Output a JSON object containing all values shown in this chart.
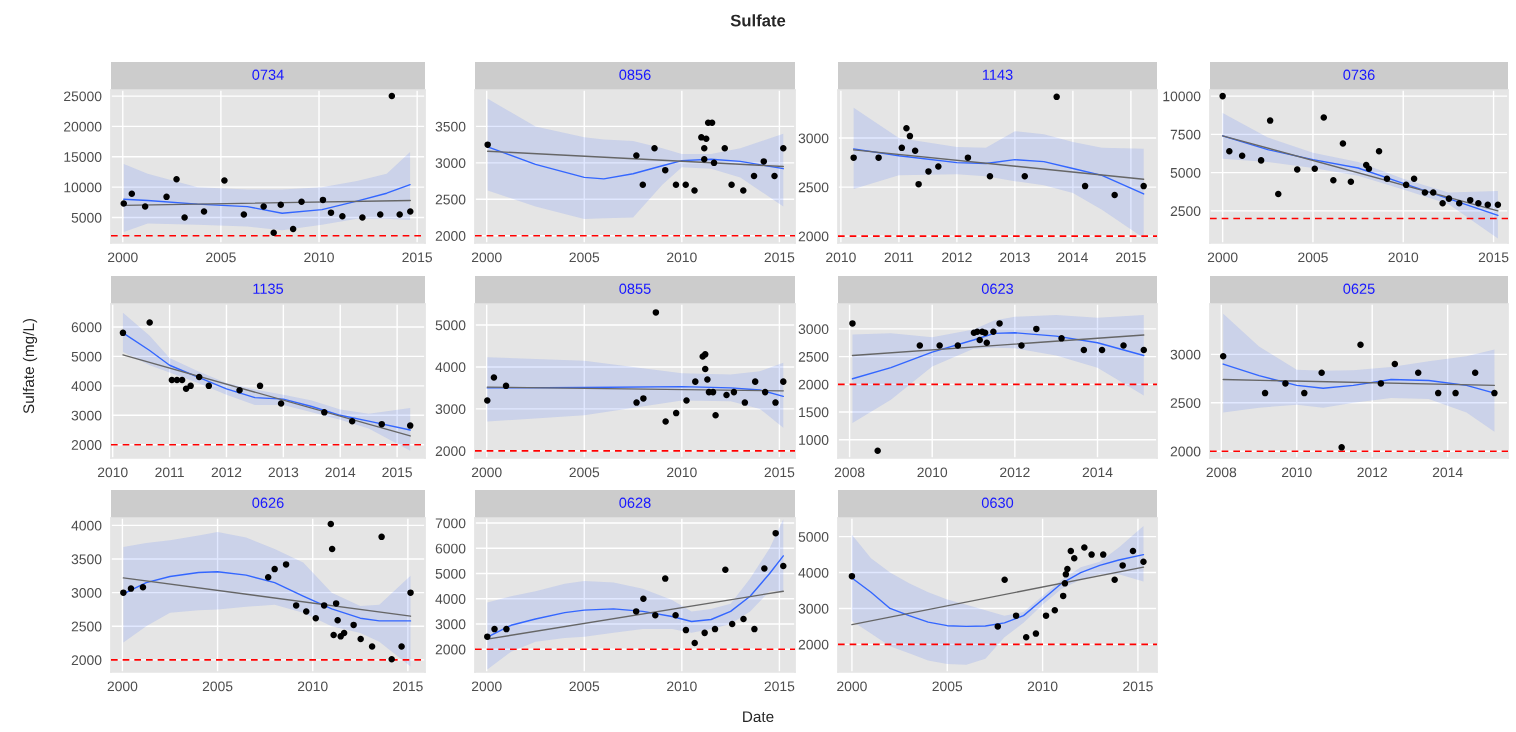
{
  "chart_data": [
    {
      "type": "scatter",
      "title": "0734",
      "xlim": [
        1999.4,
        2015.4
      ],
      "ylim": [
        800,
        26000
      ],
      "xticks": [
        2000,
        2005,
        2010,
        2015
      ],
      "yticks": [
        5000,
        10000,
        15000,
        20000,
        25000
      ],
      "grid": true,
      "ref_lines": [
        {
          "axis": "y",
          "value": 2000,
          "color": "#ff0000",
          "line_style": "dashed"
        }
      ],
      "series": [
        {
          "type": "scatter",
          "marker": "circle",
          "color": "#000000",
          "x": [
            2000.05,
            2000.46,
            2001.14,
            2002.23,
            2002.74,
            2003.15,
            2004.14,
            2005.18,
            2006.17,
            2007.18,
            2007.69,
            2008.05,
            2008.68,
            2009.11,
            2010.2,
            2010.61,
            2011.19,
            2012.21,
            2013.12,
            2013.71,
            2014.11,
            2014.65
          ],
          "values": [
            7300,
            8900,
            6800,
            8400,
            11300,
            5000,
            6000,
            11100,
            5500,
            6800,
            2500,
            7100,
            3100,
            7600,
            7900,
            5800,
            5200,
            5000,
            5500,
            25000,
            5500,
            6000
          ]
        },
        {
          "type": "line",
          "color": "#3366ff",
          "x": [
            2000.05,
            2001.27,
            2003.81,
            2006.35,
            2008.12,
            2010.15,
            2011.93,
            2013.45,
            2014.64
          ],
          "values": [
            8000,
            7800,
            7200,
            6800,
            5700,
            6300,
            7700,
            9000,
            10400
          ],
          "lower": [
            2600,
            4000,
            3800,
            3500,
            2900,
            3800,
            4800,
            4800,
            4600
          ],
          "upper": [
            13800,
            12200,
            10000,
            9600,
            9600,
            10000,
            11000,
            12200,
            15800
          ]
        },
        {
          "type": "line",
          "color": "#666666",
          "x": [
            2000.05,
            2014.65
          ],
          "values": [
            7000,
            7800
          ]
        }
      ]
    },
    {
      "type": "scatter",
      "title": "0856",
      "xlim": [
        1999.4,
        2015.8
      ],
      "ylim": [
        1900,
        4000
      ],
      "xticks": [
        2000,
        2005,
        2010,
        2015
      ],
      "yticks": [
        2000,
        2500,
        3000,
        3500
      ],
      "grid": true,
      "ref_lines": [
        {
          "axis": "y",
          "value": 2000,
          "color": "#ff0000",
          "line_style": "dashed"
        }
      ],
      "series": [
        {
          "type": "scatter",
          "marker": "circle",
          "color": "#000000",
          "x": [
            2000.05,
            2007.67,
            2008.0,
            2008.6,
            2009.15,
            2009.7,
            2010.2,
            2010.65,
            2011.0,
            2011.15,
            2011.25,
            2011.15,
            2011.35,
            2011.55,
            2011.65,
            2012.2,
            2012.55,
            2013.15,
            2013.7,
            2014.2,
            2014.75,
            2015.2
          ],
          "values": [
            3250,
            3100,
            2700,
            3200,
            2900,
            2700,
            2700,
            2620,
            3350,
            3200,
            3330,
            3050,
            3550,
            3550,
            3000,
            3200,
            2700,
            2620,
            2820,
            3020,
            2820,
            3200
          ]
        },
        {
          "type": "line",
          "color": "#3366ff",
          "x": [
            2000.05,
            2002.5,
            2005,
            2006,
            2007.5,
            2009,
            2010,
            2011.5,
            2013,
            2015.2
          ],
          "values": [
            3220,
            2980,
            2800,
            2780,
            2850,
            2960,
            3030,
            3050,
            3020,
            2920
          ],
          "lower": [
            2620,
            2400,
            2230,
            2240,
            2250,
            2700,
            2940,
            2920,
            2800,
            2400
          ],
          "upper": [
            3880,
            3500,
            3350,
            3320,
            3300,
            3200,
            3120,
            3120,
            3200,
            3400
          ]
        },
        {
          "type": "line",
          "color": "#666666",
          "x": [
            2000.05,
            2015.2
          ],
          "values": [
            3160,
            2950
          ]
        }
      ]
    },
    {
      "type": "scatter",
      "title": "1143",
      "xlim": [
        2009.95,
        2015.45
      ],
      "ylim": [
        1930,
        3490
      ],
      "xticks": [
        2010,
        2011,
        2012,
        2013,
        2014,
        2015
      ],
      "yticks": [
        2000,
        2500,
        3000
      ],
      "grid": true,
      "ref_lines": [
        {
          "axis": "y",
          "value": 2000,
          "color": "#ff0000",
          "line_style": "dashed"
        }
      ],
      "series": [
        {
          "type": "scatter",
          "marker": "circle",
          "color": "#000000",
          "x": [
            2010.22,
            2010.65,
            2011.05,
            2011.13,
            2011.19,
            2011.28,
            2011.34,
            2011.51,
            2011.68,
            2012.19,
            2012.57,
            2013.17,
            2013.72,
            2014.21,
            2014.72,
            2015.22
          ],
          "values": [
            2800,
            2800,
            2900,
            3100,
            3020,
            2870,
            2530,
            2660,
            2710,
            2800,
            2610,
            2610,
            3420,
            2510,
            2420,
            2510
          ]
        },
        {
          "type": "line",
          "color": "#3366ff",
          "x": [
            2010.22,
            2011,
            2012,
            2012.5,
            2013,
            2013.5,
            2014,
            2014.5,
            2015.22
          ],
          "values": [
            2890,
            2820,
            2750,
            2740,
            2780,
            2760,
            2690,
            2620,
            2430
          ],
          "lower": [
            2480,
            2620,
            2630,
            2610,
            2560,
            2520,
            2440,
            2270,
            1980
          ],
          "upper": [
            3310,
            3000,
            2910,
            2900,
            3070,
            3040,
            2960,
            2900,
            2890
          ]
        },
        {
          "type": "line",
          "color": "#666666",
          "x": [
            2010.22,
            2015.22
          ],
          "values": [
            2880,
            2580
          ]
        }
      ]
    },
    {
      "type": "scatter",
      "title": "0736",
      "xlim": [
        1999.3,
        2015.8
      ],
      "ylim": [
        400,
        10400
      ],
      "xticks": [
        2000,
        2005,
        2010,
        2015
      ],
      "yticks": [
        2500,
        5000,
        7500,
        10000
      ],
      "grid": true,
      "ref_lines": [
        {
          "axis": "y",
          "value": 2000,
          "color": "#ff0000",
          "line_style": "dashed"
        }
      ],
      "series": [
        {
          "type": "scatter",
          "marker": "circle",
          "color": "#000000",
          "x": [
            2000.0,
            2000.37,
            2001.08,
            2002.13,
            2002.63,
            2003.08,
            2004.13,
            2005.1,
            2005.6,
            2006.13,
            2006.66,
            2007.1,
            2007.95,
            2008.1,
            2008.66,
            2009.1,
            2010.16,
            2010.6,
            2011.2,
            2011.66,
            2012.18,
            2012.53,
            2013.1,
            2013.71,
            2014.16,
            2014.68,
            2015.24
          ],
          "values": [
            10000,
            6400,
            6100,
            5800,
            8400,
            3600,
            5200,
            5250,
            8600,
            4500,
            6900,
            4400,
            5500,
            5250,
            6400,
            4600,
            4200,
            4600,
            3700,
            3700,
            3000,
            3300,
            3000,
            3200,
            3000,
            2900,
            2900
          ]
        },
        {
          "type": "line",
          "color": "#3366ff",
          "x": [
            2000.0,
            2002.5,
            2005,
            2007.5,
            2010,
            2012.5,
            2015.24
          ],
          "values": [
            7400,
            6500,
            5850,
            5300,
            4300,
            3300,
            2200
          ],
          "lower": [
            5900,
            5700,
            5300,
            4800,
            3900,
            2950,
            700
          ],
          "upper": [
            8900,
            7300,
            6300,
            5700,
            4600,
            3700,
            3800
          ]
        },
        {
          "type": "line",
          "color": "#666666",
          "x": [
            2000.0,
            2015.24
          ],
          "values": [
            7400,
            2500
          ]
        }
      ]
    },
    {
      "type": "scatter",
      "title": "1135",
      "xlim": [
        2009.97,
        2015.49
      ],
      "ylim": [
        1550,
        6780
      ],
      "xticks": [
        2010,
        2011,
        2012,
        2013,
        2014,
        2015
      ],
      "yticks": [
        2000,
        3000,
        4000,
        5000,
        6000
      ],
      "grid": true,
      "ref_lines": [
        {
          "axis": "y",
          "value": 2000,
          "color": "#ff0000",
          "line_style": "dashed"
        }
      ],
      "series": [
        {
          "type": "scatter",
          "marker": "circle",
          "color": "#000000",
          "x": [
            2010.18,
            2010.65,
            2011.04,
            2011.13,
            2011.22,
            2011.29,
            2011.37,
            2011.52,
            2011.69,
            2012.23,
            2012.59,
            2012.96,
            2013.72,
            2014.21,
            2014.73,
            2015.23
          ],
          "values": [
            5800,
            6150,
            4200,
            4200,
            4200,
            3900,
            4000,
            4300,
            4000,
            3850,
            4000,
            3400,
            3100,
            2800,
            2700,
            2650
          ]
        },
        {
          "type": "line",
          "color": "#3366ff",
          "x": [
            2010.18,
            2010.65,
            2011,
            2011.5,
            2012,
            2012.5,
            2013,
            2013.5,
            2014,
            2014.5,
            2015.23
          ],
          "values": [
            5800,
            5200,
            4700,
            4300,
            3900,
            3600,
            3550,
            3300,
            3000,
            2800,
            2500
          ],
          "lower": [
            5150,
            4700,
            4450,
            4100,
            3700,
            3350,
            3350,
            3100,
            2850,
            2550,
            1800
          ],
          "upper": [
            6480,
            5700,
            4950,
            4500,
            4100,
            3880,
            3700,
            3500,
            3200,
            3050,
            3250
          ]
        },
        {
          "type": "line",
          "color": "#666666",
          "x": [
            2010.18,
            2015.23
          ],
          "values": [
            5050,
            2300
          ]
        }
      ]
    },
    {
      "type": "scatter",
      "title": "0855",
      "xlim": [
        1999.4,
        2015.8
      ],
      "ylim": [
        1830,
        5500
      ],
      "xticks": [
        2000,
        2005,
        2010,
        2015
      ],
      "yticks": [
        2000,
        3000,
        4000,
        5000
      ],
      "grid": true,
      "ref_lines": [
        {
          "axis": "y",
          "value": 2000,
          "color": "#ff0000",
          "line_style": "dashed"
        }
      ],
      "series": [
        {
          "type": "scatter",
          "marker": "circle",
          "color": "#000000",
          "x": [
            2000.03,
            2000.37,
            2000.99,
            2007.68,
            2008.03,
            2008.67,
            2009.17,
            2009.71,
            2010.24,
            2010.69,
            2011.07,
            2011.2,
            2011.2,
            2011.31,
            2011.39,
            2011.6,
            2011.73,
            2012.29,
            2012.67,
            2013.23,
            2013.76,
            2014.27,
            2014.8,
            2015.2
          ],
          "values": [
            3200,
            3750,
            3550,
            3150,
            3250,
            5300,
            2700,
            2900,
            3200,
            3650,
            4250,
            4300,
            3950,
            3700,
            3400,
            3400,
            2850,
            3330,
            3400,
            3150,
            3650,
            3400,
            3150,
            3650
          ]
        },
        {
          "type": "line",
          "color": "#3366ff",
          "x": [
            2000.03,
            2005,
            2010,
            2012.5,
            2014,
            2015.2
          ],
          "values": [
            3500,
            3510,
            3530,
            3500,
            3450,
            3300
          ],
          "lower": [
            2700,
            2850,
            3200,
            3180,
            3000,
            2550
          ],
          "upper": [
            4230,
            4150,
            3850,
            3820,
            3900,
            4100
          ]
        },
        {
          "type": "line",
          "color": "#666666",
          "x": [
            2000.03,
            2015.2
          ],
          "values": [
            3520,
            3430
          ]
        }
      ]
    },
    {
      "type": "scatter",
      "title": "0623",
      "xlim": [
        2007.72,
        2015.44
      ],
      "ylim": [
        670,
        3450
      ],
      "xticks": [
        2008,
        2010,
        2012,
        2014
      ],
      "yticks": [
        1000,
        1500,
        2000,
        2500,
        3000
      ],
      "grid": true,
      "ref_lines": [
        {
          "axis": "y",
          "value": 2000,
          "color": "#ff0000",
          "line_style": "dashed"
        }
      ],
      "series": [
        {
          "type": "scatter",
          "marker": "circle",
          "color": "#000000",
          "x": [
            2008.07,
            2008.68,
            2009.7,
            2010.18,
            2010.62,
            2011.01,
            2011.09,
            2011.15,
            2011.21,
            2011.28,
            2011.32,
            2011.48,
            2011.63,
            2012.16,
            2012.52,
            2013.13,
            2013.67,
            2014.11,
            2014.63,
            2015.12
          ],
          "values": [
            3100,
            800,
            2700,
            2700,
            2700,
            2930,
            2950,
            2800,
            2950,
            2930,
            2750,
            2950,
            3100,
            2700,
            3000,
            2830,
            2620,
            2620,
            2700,
            2620
          ]
        },
        {
          "type": "line",
          "color": "#3366ff",
          "x": [
            2008.07,
            2009,
            2010,
            2011,
            2011.5,
            2012,
            2013,
            2014,
            2015.12
          ],
          "values": [
            2100,
            2300,
            2580,
            2800,
            2920,
            2930,
            2870,
            2750,
            2520
          ],
          "lower": [
            1300,
            1720,
            2320,
            2640,
            2660,
            2650,
            2520,
            2300,
            1800
          ],
          "upper": [
            2900,
            2920,
            2850,
            2990,
            3150,
            3220,
            3250,
            3200,
            3250
          ]
        },
        {
          "type": "line",
          "color": "#666666",
          "x": [
            2008.07,
            2015.12
          ],
          "values": [
            2520,
            2890
          ]
        }
      ]
    },
    {
      "type": "scatter",
      "title": "0625",
      "xlim": [
        2007.7,
        2015.6
      ],
      "ylim": [
        1930,
        3520
      ],
      "xticks": [
        2008,
        2010,
        2012,
        2014
      ],
      "yticks": [
        2000,
        2500,
        3000
      ],
      "grid": true,
      "ref_lines": [
        {
          "axis": "y",
          "value": 2000,
          "color": "#ff0000",
          "line_style": "dashed"
        }
      ],
      "series": [
        {
          "type": "scatter",
          "marker": "circle",
          "color": "#000000",
          "x": [
            2008.05,
            2009.16,
            2009.7,
            2010.2,
            2010.66,
            2011.19,
            2011.69,
            2012.23,
            2012.6,
            2013.22,
            2013.75,
            2014.21,
            2014.73,
            2015.24
          ],
          "values": [
            2980,
            2600,
            2700,
            2600,
            2810,
            2040,
            3100,
            2700,
            2900,
            2810,
            2600,
            2600,
            2810,
            2600
          ]
        },
        {
          "type": "line",
          "color": "#3366ff",
          "x": [
            2008.05,
            2009,
            2010,
            2010.7,
            2011.5,
            2012.5,
            2013.5,
            2014.5,
            2015.24
          ],
          "values": [
            2900,
            2780,
            2680,
            2650,
            2680,
            2740,
            2730,
            2680,
            2600
          ],
          "lower": [
            2400,
            2450,
            2480,
            2450,
            2500,
            2550,
            2540,
            2400,
            2200
          ],
          "upper": [
            3420,
            3080,
            2840,
            2830,
            2835,
            2870,
            2930,
            2980,
            3050
          ]
        },
        {
          "type": "line",
          "color": "#666666",
          "x": [
            2008.05,
            2015.24
          ],
          "values": [
            2740,
            2680
          ]
        }
      ]
    },
    {
      "type": "scatter",
      "title": "0626",
      "xlim": [
        1999.4,
        2015.9
      ],
      "ylim": [
        1820,
        4110
      ],
      "xticks": [
        2000,
        2005,
        2010,
        2015
      ],
      "yticks": [
        2000,
        2500,
        3000,
        3500,
        4000
      ],
      "grid": true,
      "ref_lines": [
        {
          "axis": "y",
          "value": 2000,
          "color": "#ff0000",
          "line_style": "dashed"
        }
      ],
      "series": [
        {
          "type": "scatter",
          "marker": "circle",
          "color": "#000000",
          "x": [
            2000.05,
            2000.45,
            2001.08,
            2007.66,
            2008.0,
            2008.6,
            2009.13,
            2009.66,
            2010.16,
            2010.6,
            2010.95,
            2011.02,
            2011.1,
            2011.23,
            2011.31,
            2011.47,
            2011.65,
            2012.15,
            2012.52,
            2013.12,
            2013.62,
            2014.15,
            2014.67,
            2015.14
          ],
          "values": [
            3000,
            3060,
            3080,
            3230,
            3350,
            3420,
            2810,
            2720,
            2620,
            2810,
            4020,
            3650,
            2370,
            2840,
            2590,
            2350,
            2400,
            2520,
            2310,
            2200,
            3830,
            2010,
            2200,
            3000
          ]
        },
        {
          "type": "line",
          "color": "#3366ff",
          "x": [
            2000.05,
            2001.25,
            2002.5,
            2004,
            2005,
            2006.5,
            2008,
            2009.5,
            2011,
            2012.5,
            2013.5,
            2015.14
          ],
          "values": [
            2980,
            3150,
            3240,
            3300,
            3310,
            3260,
            3150,
            2950,
            2760,
            2620,
            2580,
            2580
          ],
          "lower": [
            2260,
            2500,
            2700,
            2740,
            2750,
            2790,
            2820,
            2700,
            2500,
            2400,
            2270,
            1900
          ],
          "upper": [
            3680,
            3740,
            3780,
            3850,
            3900,
            3820,
            3650,
            3450,
            3000,
            2800,
            2820,
            3250
          ]
        },
        {
          "type": "line",
          "color": "#666666",
          "x": [
            2000.05,
            2015.14
          ],
          "values": [
            3220,
            2650
          ]
        }
      ]
    },
    {
      "type": "scatter",
      "title": "0628",
      "xlim": [
        1999.4,
        2015.8
      ],
      "ylim": [
        1100,
        7200
      ],
      "xticks": [
        2000,
        2005,
        2010,
        2015
      ],
      "yticks": [
        2000,
        3000,
        4000,
        5000,
        6000,
        7000
      ],
      "grid": true,
      "ref_lines": [
        {
          "axis": "y",
          "value": 2000,
          "color": "#ff0000",
          "line_style": "dashed"
        }
      ],
      "series": [
        {
          "type": "scatter",
          "marker": "circle",
          "color": "#000000",
          "x": [
            2000.03,
            2000.4,
            2001.01,
            2007.66,
            2008.03,
            2008.64,
            2009.15,
            2009.68,
            2010.21,
            2010.66,
            2011.17,
            2011.7,
            2012.23,
            2012.58,
            2013.16,
            2013.72,
            2014.23,
            2014.81,
            2015.2
          ],
          "values": [
            2500,
            2800,
            2800,
            3500,
            4000,
            3350,
            4800,
            3350,
            2760,
            2250,
            2650,
            2800,
            5150,
            3000,
            3200,
            2800,
            5200,
            6600,
            5300
          ]
        },
        {
          "type": "line",
          "color": "#3366ff",
          "x": [
            2000.03,
            2001.25,
            2002.5,
            2004,
            2005,
            2006.5,
            2008,
            2009.5,
            2010.5,
            2011.5,
            2012.5,
            2013.5,
            2014.5,
            2015.2
          ],
          "values": [
            2480,
            2950,
            3200,
            3450,
            3550,
            3600,
            3500,
            3300,
            3100,
            3180,
            3500,
            4100,
            5000,
            5700
          ],
          "lower": [
            1200,
            1900,
            2300,
            2450,
            2500,
            2650,
            2800,
            2800,
            2650,
            2800,
            3000,
            3500,
            4300,
            4300
          ],
          "upper": [
            3850,
            4100,
            4300,
            4600,
            4700,
            4650,
            4400,
            3950,
            3500,
            3600,
            3800,
            4800,
            6000,
            7150
          ]
        },
        {
          "type": "line",
          "color": "#666666",
          "x": [
            2000.03,
            2015.2
          ],
          "values": [
            2400,
            4300
          ]
        }
      ]
    },
    {
      "type": "scatter",
      "title": "0630",
      "xlim": [
        1999.27,
        2016.0
      ],
      "ylim": [
        1230,
        5520
      ],
      "xticks": [
        2000,
        2005,
        2010,
        2015
      ],
      "yticks": [
        2000,
        3000,
        4000,
        5000
      ],
      "grid": true,
      "ref_lines": [
        {
          "axis": "y",
          "value": 2000,
          "color": "#ff0000",
          "line_style": "dashed"
        }
      ],
      "series": [
        {
          "type": "scatter",
          "marker": "circle",
          "color": "#000000",
          "x": [
            2000.0,
            2007.65,
            2008.01,
            2008.61,
            2009.14,
            2009.65,
            2010.18,
            2010.64,
            2011.08,
            2011.17,
            2011.22,
            2011.3,
            2011.48,
            2011.66,
            2012.19,
            2012.57,
            2013.18,
            2013.78,
            2014.2,
            2014.74,
            2015.29
          ],
          "values": [
            3900,
            2500,
            3800,
            2800,
            2200,
            2300,
            2800,
            2950,
            3350,
            3700,
            3950,
            4100,
            4600,
            4400,
            4700,
            4500,
            4500,
            3800,
            4200,
            4600,
            4300
          ]
        },
        {
          "type": "line",
          "color": "#3366ff",
          "x": [
            2000.0,
            2001,
            2002,
            2003,
            2004,
            2005,
            2006,
            2007,
            2008,
            2009,
            2010,
            2011,
            2012,
            2013,
            2014,
            2015.29
          ],
          "values": [
            3850,
            3450,
            3000,
            2800,
            2620,
            2520,
            2500,
            2510,
            2600,
            2800,
            3250,
            3700,
            4000,
            4200,
            4350,
            4500
          ],
          "lower": [
            2650,
            2300,
            1950,
            1750,
            1550,
            1450,
            1430,
            1600,
            2200,
            2600,
            3100,
            3550,
            3800,
            3950,
            3950,
            3750
          ],
          "upper": [
            5050,
            4400,
            4000,
            3700,
            3450,
            3250,
            3100,
            2950,
            2800,
            2900,
            3350,
            3800,
            4150,
            4300,
            4700,
            5300
          ]
        },
        {
          "type": "line",
          "color": "#666666",
          "x": [
            2000.0,
            2015.29
          ],
          "values": [
            2550,
            4150
          ]
        }
      ]
    },
    {
      "type": "other",
      "title": "Sulfate",
      "xlabel": "Date",
      "ylabel": "Sulfate (mg/L)"
    }
  ]
}
